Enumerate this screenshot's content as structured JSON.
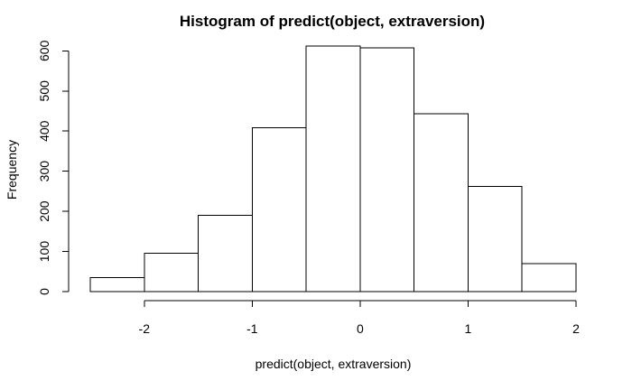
{
  "chart_data": {
    "type": "bar",
    "title": "Histogram of predict(object, extraversion)",
    "xlabel": "predict(object, extraversion)",
    "ylabel": "Frequency",
    "bins": [
      {
        "x0": -2.5,
        "x1": -2.0,
        "count": 35
      },
      {
        "x0": -2.0,
        "x1": -1.5,
        "count": 96
      },
      {
        "x0": -1.5,
        "x1": -1.0,
        "count": 190
      },
      {
        "x0": -1.0,
        "x1": -0.5,
        "count": 408
      },
      {
        "x0": -0.5,
        "x1": 0.0,
        "count": 612
      },
      {
        "x0": 0.0,
        "x1": 0.5,
        "count": 608
      },
      {
        "x0": 0.5,
        "x1": 1.0,
        "count": 443
      },
      {
        "x0": 1.0,
        "x1": 1.5,
        "count": 262
      },
      {
        "x0": 1.5,
        "x1": 2.0,
        "count": 70
      }
    ],
    "xticks": [
      -2,
      -1,
      0,
      1,
      2
    ],
    "xtick_labels": [
      "-2",
      "-1",
      "0",
      "1",
      "2"
    ],
    "yticks": [
      0,
      100,
      200,
      300,
      400,
      500,
      600
    ],
    "ytick_labels": [
      "0",
      "100",
      "200",
      "300",
      "400",
      "500",
      "600"
    ],
    "xlim": [
      -2.5,
      2.0
    ],
    "ylim": [
      0,
      612
    ],
    "grid": false,
    "legend": "none",
    "bar_fill": "#ffffff",
    "bar_stroke": "#000000"
  }
}
